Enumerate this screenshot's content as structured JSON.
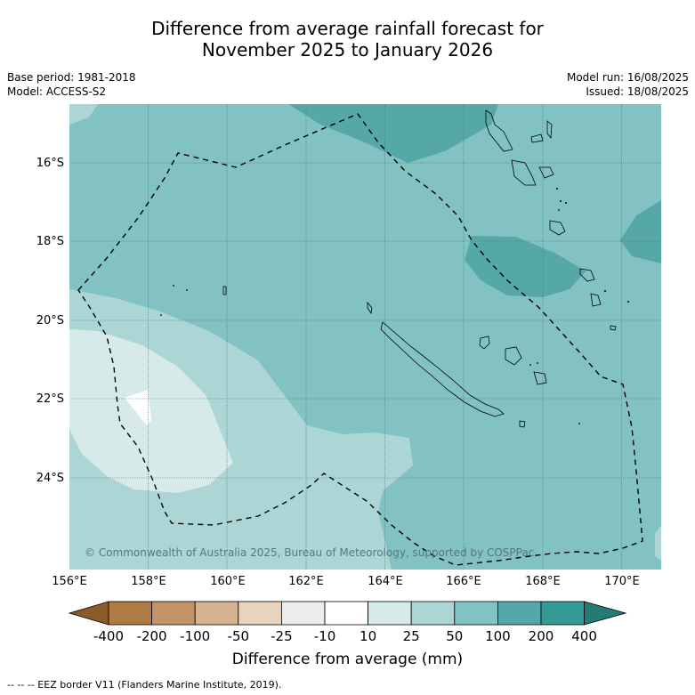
{
  "title": {
    "line1": "Difference from average rainfall forecast for",
    "line2": "November 2025 to January 2026"
  },
  "meta": {
    "base_period": "Base period: 1981-2018",
    "model": "Model: ACCESS-S2",
    "model_run": "Model run: 16/08/2025",
    "issued": "Issued: 18/08/2025"
  },
  "map": {
    "lat_labels": [
      "16°S",
      "18°S",
      "20°S",
      "22°S",
      "24°S"
    ],
    "lon_labels": [
      "156°E",
      "158°E",
      "160°E",
      "162°E",
      "164°E",
      "166°E",
      "168°E",
      "170°E"
    ],
    "credit": "© Commonwealth of Australia 2025, Bureau of Meteorology, supported by COSPPac",
    "gridlines": true,
    "border_style": "dashed"
  },
  "colorbar": {
    "ticks": [
      "-400",
      "-200",
      "-100",
      "-50",
      "-25",
      "-10",
      "10",
      "25",
      "50",
      "100",
      "200",
      "400"
    ],
    "colors": [
      "#8a5a2b",
      "#b07a44",
      "#c49468",
      "#d5b290",
      "#e8d3be",
      "#ececea",
      "#ffffff",
      "#d6eaea",
      "#acd6d6",
      "#82c2c2",
      "#56a8a8",
      "#339a94",
      "#267a76"
    ],
    "label": "Difference from average (mm)"
  },
  "legend": {
    "footnote": "--  --  -- EEZ border V11 (Flanders Marine Institute, 2019)."
  }
}
